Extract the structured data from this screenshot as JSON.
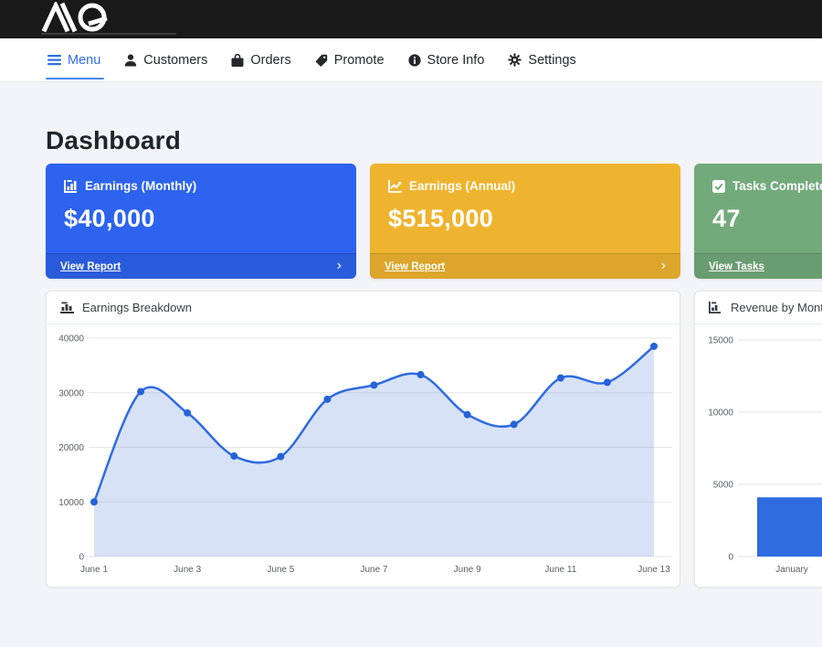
{
  "topbar": {
    "logo_text": "AQ"
  },
  "nav": {
    "items": [
      {
        "label": "Menu",
        "icon": "hamburger-icon",
        "active": true
      },
      {
        "label": "Customers",
        "icon": "person-icon",
        "active": false
      },
      {
        "label": "Orders",
        "icon": "bag-icon",
        "active": false
      },
      {
        "label": "Promote",
        "icon": "tag-icon",
        "active": false
      },
      {
        "label": "Store Info",
        "icon": "info-circle-icon",
        "active": false
      },
      {
        "label": "Settings",
        "icon": "gear-icon",
        "active": false
      }
    ]
  },
  "page": {
    "title": "Dashboard"
  },
  "stat_cards": [
    {
      "title": "Earnings (Monthly)",
      "value": "$40,000",
      "link": "View Report",
      "chevron": "›",
      "color": "#2d63ee",
      "icon": "chart-bar-icon"
    },
    {
      "title": "Earnings (Annual)",
      "value": "$515,000",
      "link": "View Report",
      "chevron": "›",
      "color": "#efb42f",
      "icon": "chart-line-icon"
    },
    {
      "title": "Tasks Completed",
      "value": "47",
      "link": "View Tasks",
      "chevron": "›",
      "color": "#73aa7c",
      "icon": "check-square-icon"
    }
  ],
  "colors": {
    "line": "#2f6be0",
    "line_fill": "rgba(58,111,216,0.20)",
    "point": "#2563d6",
    "bar": "#2e6ce0",
    "grid": "#e6e6e6"
  },
  "chart_data": [
    {
      "type": "line",
      "title": "Earnings Breakdown",
      "x": [
        "June 1",
        "June 2",
        "June 3",
        "June 4",
        "June 5",
        "June 6",
        "June 7",
        "June 8",
        "June 9",
        "June 10",
        "June 11",
        "June 12",
        "June 13"
      ],
      "values": [
        10000,
        30200,
        26300,
        18400,
        18300,
        28800,
        31400,
        33300,
        26000,
        24200,
        32700,
        31900,
        38500
      ],
      "x_tick_indices": [
        0,
        2,
        4,
        6,
        8,
        10,
        12
      ],
      "yticks": [
        0,
        10000,
        20000,
        30000,
        40000
      ],
      "ylim": [
        0,
        40000
      ],
      "grid": true,
      "legend": "none",
      "smooth": true
    },
    {
      "type": "bar",
      "title": "Revenue by Month",
      "categories": [
        "January"
      ],
      "values": [
        4100
      ],
      "yticks": [
        0,
        5000,
        10000,
        15000
      ],
      "ylim": [
        0,
        15000
      ],
      "grid": true,
      "legend": "none",
      "note": "card truncated at right viewport edge"
    }
  ]
}
